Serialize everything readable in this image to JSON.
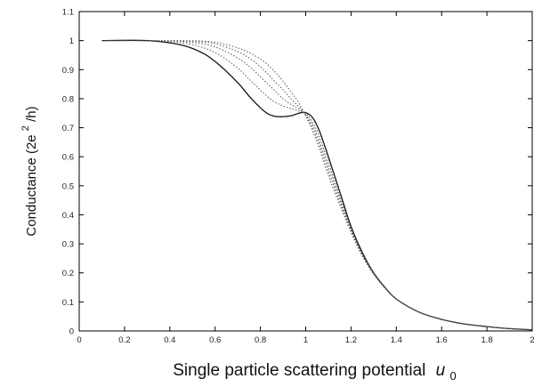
{
  "chart_data": {
    "type": "line",
    "xlabel": "Single particle scattering potential",
    "xlabel_var": "u",
    "xlabel_sub": "0",
    "ylabel_main": "Conductance (2e",
    "ylabel_sup": "2",
    "ylabel_end": "/h)",
    "xlim": [
      0,
      2
    ],
    "ylim": [
      0,
      1.1
    ],
    "xticks": [
      "0",
      "0.2",
      "0.4",
      "0.6",
      "0.8",
      "1",
      "1.2",
      "1.4",
      "1.6",
      "1.8",
      "2"
    ],
    "yticks": [
      "0",
      "0.1",
      "0.2",
      "0.3",
      "0.4",
      "0.5",
      "0.6",
      "0.7",
      "0.8",
      "0.9",
      "1",
      "1.1"
    ],
    "grid": false,
    "series": [
      {
        "style": "solid",
        "x": [
          0.1,
          0.3,
          0.45,
          0.55,
          0.62,
          0.7,
          0.76,
          0.82,
          0.86,
          0.9,
          0.94,
          0.97,
          1.0,
          1.03,
          1.06,
          1.1,
          1.15,
          1.2,
          1.25,
          1.3,
          1.35,
          1.4,
          1.5,
          1.6,
          1.7,
          1.8,
          1.9,
          2.0
        ],
        "y": [
          1.0,
          1.0,
          0.985,
          0.955,
          0.915,
          0.855,
          0.8,
          0.755,
          0.74,
          0.738,
          0.742,
          0.75,
          0.752,
          0.735,
          0.69,
          0.6,
          0.48,
          0.36,
          0.27,
          0.2,
          0.15,
          0.11,
          0.065,
          0.04,
          0.024,
          0.015,
          0.008,
          0.004
        ]
      },
      {
        "style": "dotted",
        "x": [
          0.1,
          0.3,
          0.45,
          0.55,
          0.62,
          0.7,
          0.76,
          0.82,
          0.86,
          0.9,
          0.94,
          0.97,
          1.0,
          1.03,
          1.06,
          1.1,
          1.15,
          1.2,
          1.25,
          1.3,
          1.35,
          1.4,
          1.5,
          1.6,
          1.7,
          1.8,
          1.9,
          2.0
        ],
        "y": [
          1.0,
          1.0,
          0.993,
          0.975,
          0.95,
          0.905,
          0.86,
          0.815,
          0.79,
          0.775,
          0.765,
          0.758,
          0.748,
          0.72,
          0.67,
          0.58,
          0.465,
          0.355,
          0.265,
          0.2,
          0.15,
          0.11,
          0.065,
          0.04,
          0.024,
          0.015,
          0.008,
          0.004
        ]
      },
      {
        "style": "dotted",
        "x": [
          0.1,
          0.3,
          0.45,
          0.55,
          0.62,
          0.7,
          0.76,
          0.82,
          0.86,
          0.9,
          0.94,
          0.97,
          1.0,
          1.03,
          1.06,
          1.1,
          1.15,
          1.2,
          1.25,
          1.3,
          1.35,
          1.4,
          1.5,
          1.6,
          1.7,
          1.8,
          1.9,
          2.0
        ],
        "y": [
          1.0,
          1.0,
          0.997,
          0.988,
          0.972,
          0.94,
          0.905,
          0.86,
          0.83,
          0.8,
          0.778,
          0.765,
          0.745,
          0.71,
          0.655,
          0.565,
          0.455,
          0.35,
          0.262,
          0.198,
          0.149,
          0.11,
          0.065,
          0.04,
          0.024,
          0.015,
          0.008,
          0.004
        ]
      },
      {
        "style": "dotted",
        "x": [
          0.1,
          0.3,
          0.45,
          0.55,
          0.62,
          0.7,
          0.76,
          0.82,
          0.86,
          0.9,
          0.94,
          0.97,
          1.0,
          1.03,
          1.06,
          1.1,
          1.15,
          1.2,
          1.25,
          1.3,
          1.35,
          1.4,
          1.5,
          1.6,
          1.7,
          1.8,
          1.9,
          2.0
        ],
        "y": [
          1.0,
          1.0,
          0.999,
          0.995,
          0.985,
          0.962,
          0.935,
          0.895,
          0.862,
          0.83,
          0.795,
          0.772,
          0.742,
          0.7,
          0.642,
          0.55,
          0.445,
          0.345,
          0.26,
          0.196,
          0.148,
          0.11,
          0.065,
          0.04,
          0.024,
          0.015,
          0.008,
          0.004
        ]
      },
      {
        "style": "dotted",
        "x": [
          0.1,
          0.3,
          0.45,
          0.55,
          0.62,
          0.7,
          0.76,
          0.82,
          0.86,
          0.9,
          0.94,
          0.97,
          1.0,
          1.03,
          1.06,
          1.1,
          1.15,
          1.2,
          1.25,
          1.3,
          1.35,
          1.4,
          1.5,
          1.6,
          1.7,
          1.8,
          1.9,
          2.0
        ],
        "y": [
          1.0,
          1.0,
          1.0,
          0.998,
          0.992,
          0.975,
          0.955,
          0.925,
          0.895,
          0.86,
          0.818,
          0.785,
          0.74,
          0.69,
          0.628,
          0.535,
          0.435,
          0.34,
          0.258,
          0.195,
          0.147,
          0.11,
          0.065,
          0.04,
          0.024,
          0.015,
          0.008,
          0.004
        ]
      }
    ]
  }
}
